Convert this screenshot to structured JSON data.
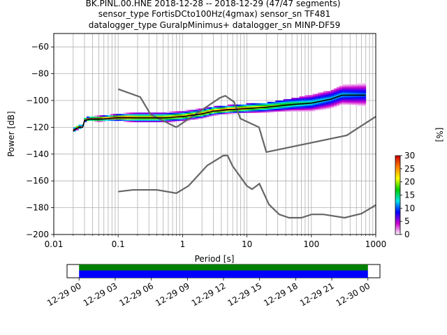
{
  "title": {
    "line1": "BK.PINL.00.HNE   2018-12-28 -- 2018-12-29  (47/47 segments)",
    "line2": "sensor_type FortisDCto100Hz(4gmax) sensor_sn TF481",
    "line3": "datalogger_type GuralpMinimus+ datalogger_sn MINP-DF59"
  },
  "colorbar": {
    "label": "[%]",
    "ticks": [
      "0",
      "5",
      "10",
      "15",
      "20",
      "25",
      "30"
    ],
    "range": [
      0,
      30
    ],
    "colors": [
      "#ffffff",
      "#cc00cc",
      "#0000ff",
      "#00e5e5",
      "#00cc00",
      "#ffff00",
      "#ff8000",
      "#cc0000"
    ]
  },
  "chart_data": [
    {
      "type": "heatmap",
      "subtype": "probabilistic power spectral density",
      "xlabel": "Period [s]",
      "ylabel": "Power [dB]",
      "xscale": "log",
      "xlim": [
        0.01,
        1000
      ],
      "ylim": [
        -200,
        -50
      ],
      "grid": true,
      "xticks": [
        "0.01",
        "0.1",
        "1",
        "10",
        "100",
        "1000"
      ],
      "yticks": [
        "−200",
        "−180",
        "−160",
        "−140",
        "−120",
        "−100",
        "−80",
        "−60"
      ],
      "yticks_values": [
        -200,
        -180,
        -160,
        -140,
        -120,
        -100,
        -80,
        -60
      ],
      "xticks_values": [
        0.01,
        0.1,
        1,
        10,
        100,
        1000
      ],
      "noise_model_high": {
        "name": "NHNM",
        "color": "#666666",
        "x": [
          0.1,
          0.22,
          0.32,
          0.8,
          3.8,
          4.6,
          6.3,
          7.9,
          15.4,
          20,
          354.8,
          1000
        ],
        "y": [
          -91.5,
          -97.4,
          -110.5,
          -120,
          -98,
          -96.5,
          -101,
          -113.5,
          -120,
          -138.5,
          -126,
          -112
        ]
      },
      "noise_model_low": {
        "name": "NLNM",
        "color": "#666666",
        "x": [
          0.1,
          0.17,
          0.4,
          0.8,
          1.24,
          2.4,
          4.3,
          5,
          6,
          10,
          12,
          15.6,
          21.9,
          31.6,
          45,
          70,
          101,
          154,
          328,
          600,
          1000
        ],
        "y": [
          -168,
          -166.7,
          -166.7,
          -169.2,
          -163.7,
          -148.6,
          -141.1,
          -141.1,
          -149,
          -163.8,
          -166.2,
          -162.1,
          -177.5,
          -185,
          -187.5,
          -187.5,
          -185,
          -185,
          -187.5,
          -184.4,
          -178
        ]
      },
      "mean_curve": {
        "color": "#000000",
        "x": [
          0.02,
          0.022,
          0.025,
          0.028,
          0.03,
          0.035,
          0.05,
          0.1,
          0.2,
          0.5,
          1,
          2,
          3,
          5,
          10,
          20,
          50,
          100,
          200,
          300,
          700
        ],
        "y": [
          -123,
          -121,
          -120,
          -120,
          -115,
          -114,
          -114,
          -113,
          -113,
          -113,
          -112,
          -110,
          -108,
          -107,
          -106,
          -105,
          -103,
          -102,
          -99,
          -96,
          -96
        ]
      },
      "pdf_band": {
        "x": [
          0.02,
          0.025,
          0.03,
          0.05,
          0.1,
          0.2,
          0.5,
          1,
          2,
          5,
          10,
          20,
          50,
          100,
          200,
          300,
          700
        ],
        "low": [
          -125,
          -123,
          -116,
          -116,
          -116,
          -117,
          -117,
          -116,
          -114,
          -111,
          -111,
          -111,
          -110,
          -109,
          -108,
          -104,
          -103
        ],
        "high": [
          -122,
          -120,
          -113,
          -112,
          -111,
          -110,
          -110,
          -109,
          -107,
          -105,
          -104,
          -103,
          -100,
          -97,
          -94,
          -90,
          -87
        ]
      }
    },
    {
      "type": "timeline",
      "description": "data availability",
      "xticks": [
        "12-29 00",
        "12-29 03",
        "12-29 06",
        "12-29 09",
        "12-29 12",
        "12-29 15",
        "12-29 18",
        "12-29 21",
        "12-30 00"
      ],
      "coverage_start_hours": 0,
      "coverage_end_hours": 24,
      "xlim_hours": [
        -1,
        25
      ],
      "colors": {
        "top": "#008000",
        "bottom": "#0000ff"
      }
    }
  ]
}
